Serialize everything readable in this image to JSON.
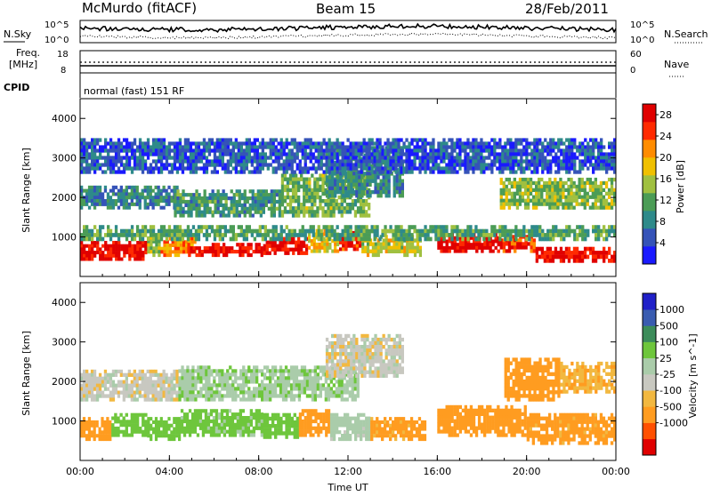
{
  "header": {
    "station": "McMurdo (fitACF)",
    "beam": "Beam 15",
    "date": "28/Feb/2011"
  },
  "top_panel": {
    "left_label": "N.Sky",
    "left_ticks": [
      "10^5",
      "10^0"
    ],
    "right_label": "N.Search",
    "right_ticks": [
      "10^5",
      "10^0"
    ]
  },
  "freq_panel": {
    "left_label_1": "Freq.",
    "left_label_2": "[MHz]",
    "left_ticks": [
      "18",
      "8"
    ],
    "right_label": "Nave",
    "right_ticks": [
      "60",
      "0"
    ]
  },
  "cpid": {
    "label": "CPID",
    "mode": "normal (fast) 151 RF"
  },
  "colors": {
    "power": [
      "#1a1aff",
      "#3553b8",
      "#2e8a8a",
      "#4b9c56",
      "#a0c040",
      "#f0c000",
      "#ff8c00",
      "#ff2a00",
      "#e00000"
    ],
    "velocity": [
      "#e00000",
      "#ff5000",
      "#ff9c20",
      "#f2b840",
      "#c8c8c0",
      "#aaccaa",
      "#6ec63c",
      "#3c8c5a",
      "#3a5cb0",
      "#2020c8"
    ]
  },
  "chart_data": [
    {
      "type": "heatmap",
      "name": "power",
      "xlabel": "",
      "ylabel": "Slant Range [km]",
      "x_ticks": [
        "00:00",
        "04:00",
        "08:00",
        "12:00",
        "16:00",
        "20:00",
        "00:00"
      ],
      "y_ticks": [
        "1000",
        "2000",
        "3000",
        "4000"
      ],
      "ylim": [
        0,
        4500
      ],
      "xlim_hours": [
        0,
        24
      ],
      "colorbar": {
        "label": "Power [dB]",
        "ticks": [
          "4",
          "8",
          "12",
          "16",
          "20",
          "24",
          "28"
        ],
        "range": [
          0,
          30
        ]
      },
      "regions": [
        {
          "x": [
            0,
            3
          ],
          "y": [
            400,
            900
          ],
          "value": 28
        },
        {
          "x": [
            3,
            3.6
          ],
          "y": [
            500,
            1100
          ],
          "value": 16
        },
        {
          "x": [
            3.6,
            5.2
          ],
          "y": [
            500,
            1000
          ],
          "value": 22
        },
        {
          "x": [
            4.8,
            8.2
          ],
          "y": [
            500,
            850
          ],
          "value": 28
        },
        {
          "x": [
            8.2,
            10.2
          ],
          "y": [
            550,
            1000
          ],
          "value": 27
        },
        {
          "x": [
            10.2,
            11.6
          ],
          "y": [
            600,
            1200
          ],
          "value": 18
        },
        {
          "x": [
            11.6,
            12.6
          ],
          "y": [
            650,
            1150
          ],
          "value": 27
        },
        {
          "x": [
            12.6,
            15.3
          ],
          "y": [
            500,
            1050
          ],
          "value": 17
        },
        {
          "x": [
            16,
            18.8
          ],
          "y": [
            600,
            1100
          ],
          "value": 28
        },
        {
          "x": [
            18.8,
            20.4
          ],
          "y": [
            600,
            1050
          ],
          "value": 25
        },
        {
          "x": [
            20.4,
            24
          ],
          "y": [
            350,
            750
          ],
          "value": 28
        },
        {
          "x": [
            0,
            24
          ],
          "y": [
            900,
            1300
          ],
          "value": 11
        },
        {
          "x": [
            0,
            4.4
          ],
          "y": [
            1700,
            2300
          ],
          "value": 8
        },
        {
          "x": [
            4.2,
            9
          ],
          "y": [
            1500,
            2200
          ],
          "value": 10
        },
        {
          "x": [
            9,
            13
          ],
          "y": [
            1500,
            2600
          ],
          "value": 13
        },
        {
          "x": [
            11,
            14.5
          ],
          "y": [
            2000,
            3300
          ],
          "value": 9
        },
        {
          "x": [
            18.8,
            24
          ],
          "y": [
            1700,
            2500
          ],
          "value": 14
        },
        {
          "x": [
            0,
            24
          ],
          "y": [
            2600,
            3500
          ],
          "value": 5
        }
      ]
    },
    {
      "type": "heatmap",
      "name": "velocity",
      "xlabel": "Time UT",
      "ylabel": "Slant Range [km]",
      "x_ticks": [
        "00:00",
        "04:00",
        "08:00",
        "12:00",
        "16:00",
        "20:00",
        "00:00"
      ],
      "y_ticks": [
        "1000",
        "2000",
        "3000",
        "4000"
      ],
      "ylim": [
        0,
        4500
      ],
      "xlim_hours": [
        0,
        24
      ],
      "colorbar": {
        "label": "Velocity [m s^-1]",
        "ticks": [
          "1000",
          "500",
          "100",
          "25",
          "-25",
          "-100",
          "-500",
          "-1000"
        ]
      },
      "regions": [
        {
          "x": [
            0,
            1.4
          ],
          "y": [
            500,
            1100
          ],
          "value": -300
        },
        {
          "x": [
            1.4,
            3
          ],
          "y": [
            600,
            1200
          ],
          "value": 200
        },
        {
          "x": [
            3,
            4.5
          ],
          "y": [
            500,
            1100
          ],
          "value": 300
        },
        {
          "x": [
            4.5,
            8.2
          ],
          "y": [
            600,
            1300
          ],
          "value": 150
        },
        {
          "x": [
            8.2,
            9.8
          ],
          "y": [
            550,
            1200
          ],
          "value": 300
        },
        {
          "x": [
            9.8,
            11.2
          ],
          "y": [
            600,
            1300
          ],
          "value": -200
        },
        {
          "x": [
            11.2,
            13
          ],
          "y": [
            500,
            1200
          ],
          "value": 60
        },
        {
          "x": [
            13,
            15.5
          ],
          "y": [
            500,
            1100
          ],
          "value": -150
        },
        {
          "x": [
            16,
            20
          ],
          "y": [
            600,
            1400
          ],
          "value": -300
        },
        {
          "x": [
            20,
            24
          ],
          "y": [
            400,
            1200
          ],
          "value": -150
        },
        {
          "x": [
            0,
            4.4
          ],
          "y": [
            1500,
            2300
          ],
          "value": 0
        },
        {
          "x": [
            4.4,
            12.5
          ],
          "y": [
            1500,
            2400
          ],
          "value": 80
        },
        {
          "x": [
            11,
            14.5
          ],
          "y": [
            2100,
            3200
          ],
          "value": 0
        },
        {
          "x": [
            19,
            21.5
          ],
          "y": [
            1500,
            2600
          ],
          "value": -200
        },
        {
          "x": [
            21.5,
            24
          ],
          "y": [
            1700,
            2500
          ],
          "value": -80
        }
      ]
    }
  ]
}
